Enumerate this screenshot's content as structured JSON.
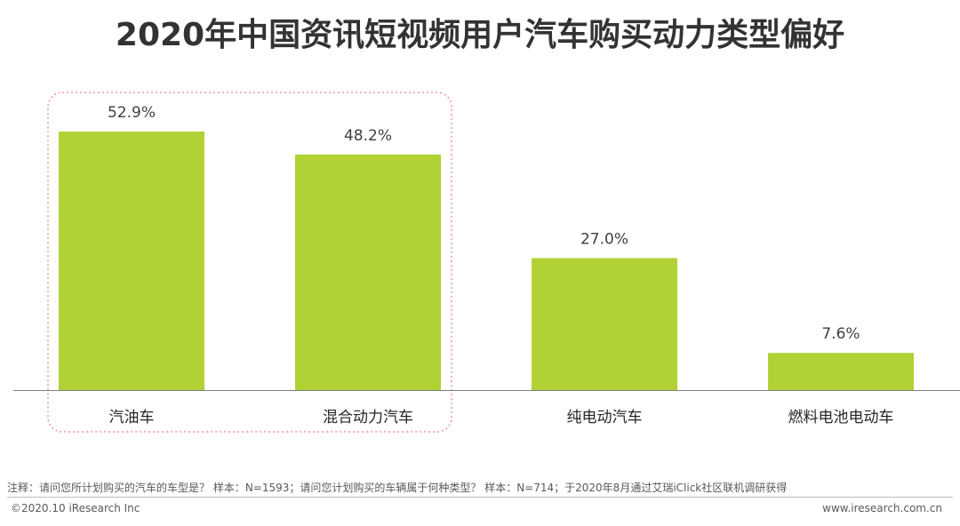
{
  "header": {
    "title": "2020年中国资讯短视频用户汽车购买动力类型偏好"
  },
  "chart_data": {
    "type": "bar",
    "categories": [
      "汽油车",
      "混合动力汽车",
      "纯电动汽车",
      "燃料电池电动车"
    ],
    "values": [
      52.9,
      48.2,
      27.0,
      7.6
    ],
    "value_labels": [
      "52.9%",
      "48.2%",
      "27.0%",
      "7.6%"
    ],
    "title": "2020年中国资讯短视频用户汽车购买动力类型偏好",
    "xlabel": "",
    "ylabel": "",
    "ylim": [
      0,
      60
    ],
    "grid": false,
    "legend": "none",
    "bar_color": "#B0D235",
    "highlight_color": "#F08080",
    "highlighted_categories": [
      "汽油车",
      "混合动力汽车"
    ]
  },
  "footer": {
    "note": "注释：请问您所计划购买的汽车的车型是？ 样本：N=1593；请问您计划购买的车辆属于何种类型？ 样本：N=714；于2020年8月通过艾瑞iClick社区联机调研获得",
    "copyright": "©2020.10 iResearch Inc",
    "website": "www.iresearch.com.cn"
  }
}
